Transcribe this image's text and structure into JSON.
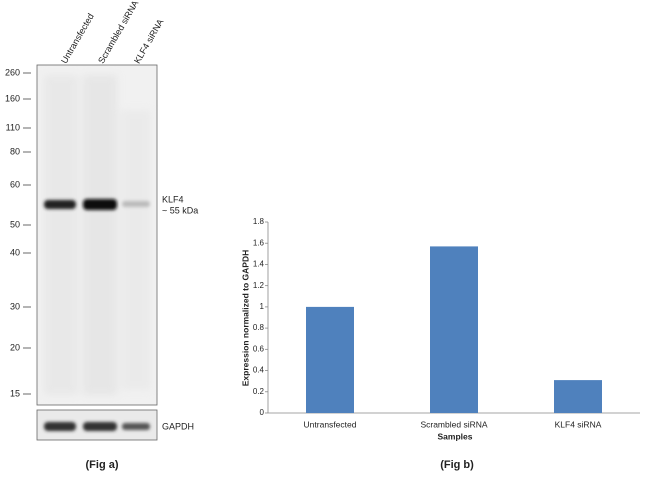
{
  "blot": {
    "lanes": [
      "Untransfected",
      "Scrambled siRNA",
      "KLF4 siRNA"
    ],
    "markers": [
      "260",
      "160",
      "110",
      "80",
      "60",
      "50",
      "40",
      "30",
      "20",
      "15"
    ],
    "band_label": "KLF4",
    "band_size": "~ 55 kDa",
    "loading_control": "GAPDH",
    "caption": "(Fig a)"
  },
  "chart_data": {
    "type": "bar",
    "categories": [
      "Untransfected",
      "Scrambled siRNA",
      "KLF4 siRNA"
    ],
    "values": [
      1,
      1.57,
      0.31
    ],
    "color": "#4f81bd",
    "ylim": [
      0,
      1.8
    ],
    "yticks": [
      0,
      0.2,
      0.4,
      0.6,
      0.8,
      1,
      1.2,
      1.4,
      1.6,
      1.8
    ],
    "xlabel": "Samples",
    "ylabel": "Expression normalized to GAPDH",
    "caption": "(Fig b)"
  }
}
